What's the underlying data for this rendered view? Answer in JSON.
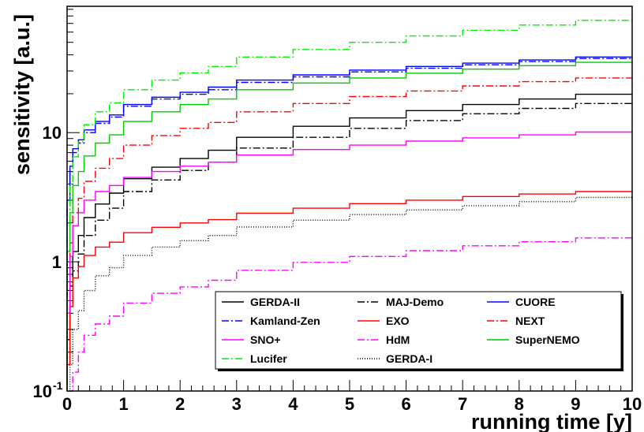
{
  "chart_data": {
    "type": "line",
    "xlabel": "running time [y]",
    "ylabel": "sensitivity [a.u.]",
    "xlim": [
      0,
      10
    ],
    "ylim": [
      0.1,
      95
    ],
    "yscale": "log",
    "grid": false,
    "legend_position": "bottom-right",
    "x_ticks": [
      "0",
      "1",
      "2",
      "3",
      "4",
      "5",
      "6",
      "7",
      "8",
      "9",
      "10"
    ],
    "y_ticks": [
      {
        "value": 0.1,
        "label": "10",
        "sup": "-1"
      },
      {
        "value": 1,
        "label": "1",
        "sup": ""
      },
      {
        "value": 10,
        "label": "10",
        "sup": ""
      }
    ],
    "x": [
      0.05,
      0.1,
      0.2,
      0.3,
      0.5,
      0.75,
      1,
      1.5,
      2,
      2.5,
      3,
      4,
      5,
      6,
      7,
      8,
      9,
      10
    ],
    "series": [
      {
        "name": "GERDA-II",
        "color": "#000000",
        "dash": "",
        "values": [
          0.25,
          0.65,
          1.2,
          1.6,
          2.2,
          2.8,
          3.4,
          4.4,
          5.4,
          6.3,
          7.3,
          9.2,
          11.2,
          13.0,
          14.8,
          16.5,
          18.2,
          19.8
        ]
      },
      {
        "name": "MAJ-Demo",
        "color": "#000000",
        "dash": "9,3,2,3",
        "values": [
          0.18,
          0.45,
          0.85,
          1.15,
          1.6,
          2.1,
          2.6,
          3.5,
          4.3,
          5.1,
          5.9,
          7.6,
          9.2,
          10.8,
          12.4,
          14.0,
          15.4,
          16.8
        ]
      },
      {
        "name": "CUORE",
        "color": "#0000ff",
        "dash": "",
        "values": [
          3.0,
          5.5,
          7.5,
          8.8,
          10.5,
          12.2,
          13.7,
          16.5,
          18.8,
          20.5,
          22.5,
          25.5,
          28.0,
          30.5,
          32.5,
          34.5,
          36.5,
          38.5
        ]
      },
      {
        "name": "Kamland-Zen",
        "color": "#0000ff",
        "dash": "9,3,2,3",
        "values": [
          2.5,
          5.0,
          7.0,
          8.3,
          10.0,
          11.8,
          13.2,
          16.0,
          18.2,
          19.8,
          21.5,
          24.5,
          27.0,
          29.5,
          31.5,
          33.5,
          35.5,
          37.5
        ]
      },
      {
        "name": "EXO",
        "color": "#ff0000",
        "dash": "",
        "values": [
          0.16,
          0.45,
          0.75,
          0.92,
          1.12,
          1.3,
          1.42,
          1.68,
          1.85,
          2.0,
          2.12,
          2.38,
          2.6,
          2.82,
          3.0,
          3.2,
          3.35,
          3.5
        ]
      },
      {
        "name": "NEXT",
        "color": "#ff0000",
        "dash": "9,3,2,3",
        "values": [
          0.6,
          1.4,
          2.4,
          3.1,
          4.2,
          5.3,
          6.3,
          8.0,
          9.5,
          10.8,
          12.0,
          14.5,
          16.8,
          19.0,
          21.0,
          23.0,
          24.8,
          26.5
        ]
      },
      {
        "name": "SNO+",
        "color": "#ff00ff",
        "dash": "",
        "values": [
          0.4,
          1.1,
          1.9,
          2.4,
          3.0,
          3.5,
          3.9,
          4.5,
          5.0,
          5.5,
          5.9,
          6.7,
          7.4,
          8.0,
          8.6,
          9.1,
          9.6,
          10.1
        ]
      },
      {
        "name": "HdM",
        "color": "#ff00ff",
        "dash": "9,3,2,3",
        "values": [
          0.1,
          0.1,
          0.14,
          0.2,
          0.27,
          0.33,
          0.38,
          0.48,
          0.57,
          0.64,
          0.72,
          0.86,
          0.99,
          1.1,
          1.22,
          1.33,
          1.43,
          1.53
        ]
      },
      {
        "name": "SuperNEMO",
        "color": "#00cc00",
        "dash": "",
        "values": [
          1.2,
          2.4,
          3.9,
          5.0,
          6.6,
          8.3,
          9.6,
          12.2,
          14.5,
          16.5,
          18.2,
          21.5,
          24.2,
          26.5,
          28.8,
          31.0,
          33.0,
          35.0
        ]
      },
      {
        "name": "Lucifer",
        "color": "#00ee00",
        "dash": "9,3,2,3",
        "values": [
          2.0,
          4.0,
          6.5,
          8.5,
          11.5,
          14.5,
          17.0,
          21.5,
          25.5,
          29.0,
          32.5,
          38.5,
          44.0,
          50.0,
          56.0,
          62.0,
          68.0,
          74.0
        ]
      },
      {
        "name": "GERDA-I",
        "color": "#000000",
        "dash": "1,2",
        "values": [
          0.1,
          0.16,
          0.3,
          0.42,
          0.6,
          0.78,
          0.9,
          1.12,
          1.3,
          1.46,
          1.6,
          1.86,
          2.1,
          2.32,
          2.52,
          2.72,
          2.92,
          3.15
        ]
      }
    ],
    "legend_layout": [
      "GERDA-II",
      "MAJ-Demo",
      "CUORE",
      "Kamland-Zen",
      "EXO",
      "NEXT",
      "SNO+",
      "HdM",
      "SuperNEMO",
      "Lucifer",
      "GERDA-I"
    ]
  }
}
